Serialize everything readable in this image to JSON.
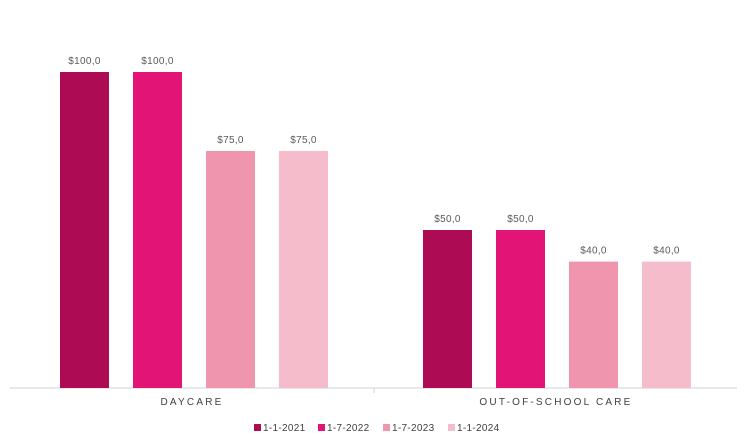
{
  "chart_data": {
    "type": "bar",
    "categories": [
      "DAYCARE",
      "OUT-OF-SCHOOL CARE"
    ],
    "series": [
      {
        "name": "1-1-2021",
        "color": "#ad0c54",
        "values": [
          100.0,
          50.0
        ],
        "labels": [
          "$100,0",
          "$50,0"
        ]
      },
      {
        "name": "1-7-2022",
        "color": "#e21576",
        "values": [
          100.0,
          50.0
        ],
        "labels": [
          "$100,0",
          "$50,0"
        ]
      },
      {
        "name": "1-7-2023",
        "color": "#f095ae",
        "values": [
          75.0,
          40.0
        ],
        "labels": [
          "$75,0",
          "$40,0"
        ]
      },
      {
        "name": "1-1-2024",
        "color": "#f5bccb",
        "values": [
          75.0,
          40.0
        ],
        "labels": [
          "$75,0",
          "$40,0"
        ]
      }
    ],
    "ylim": [
      0,
      100
    ],
    "grid": false,
    "legend_position": "bottom",
    "title": "",
    "xlabel": "",
    "ylabel": ""
  }
}
